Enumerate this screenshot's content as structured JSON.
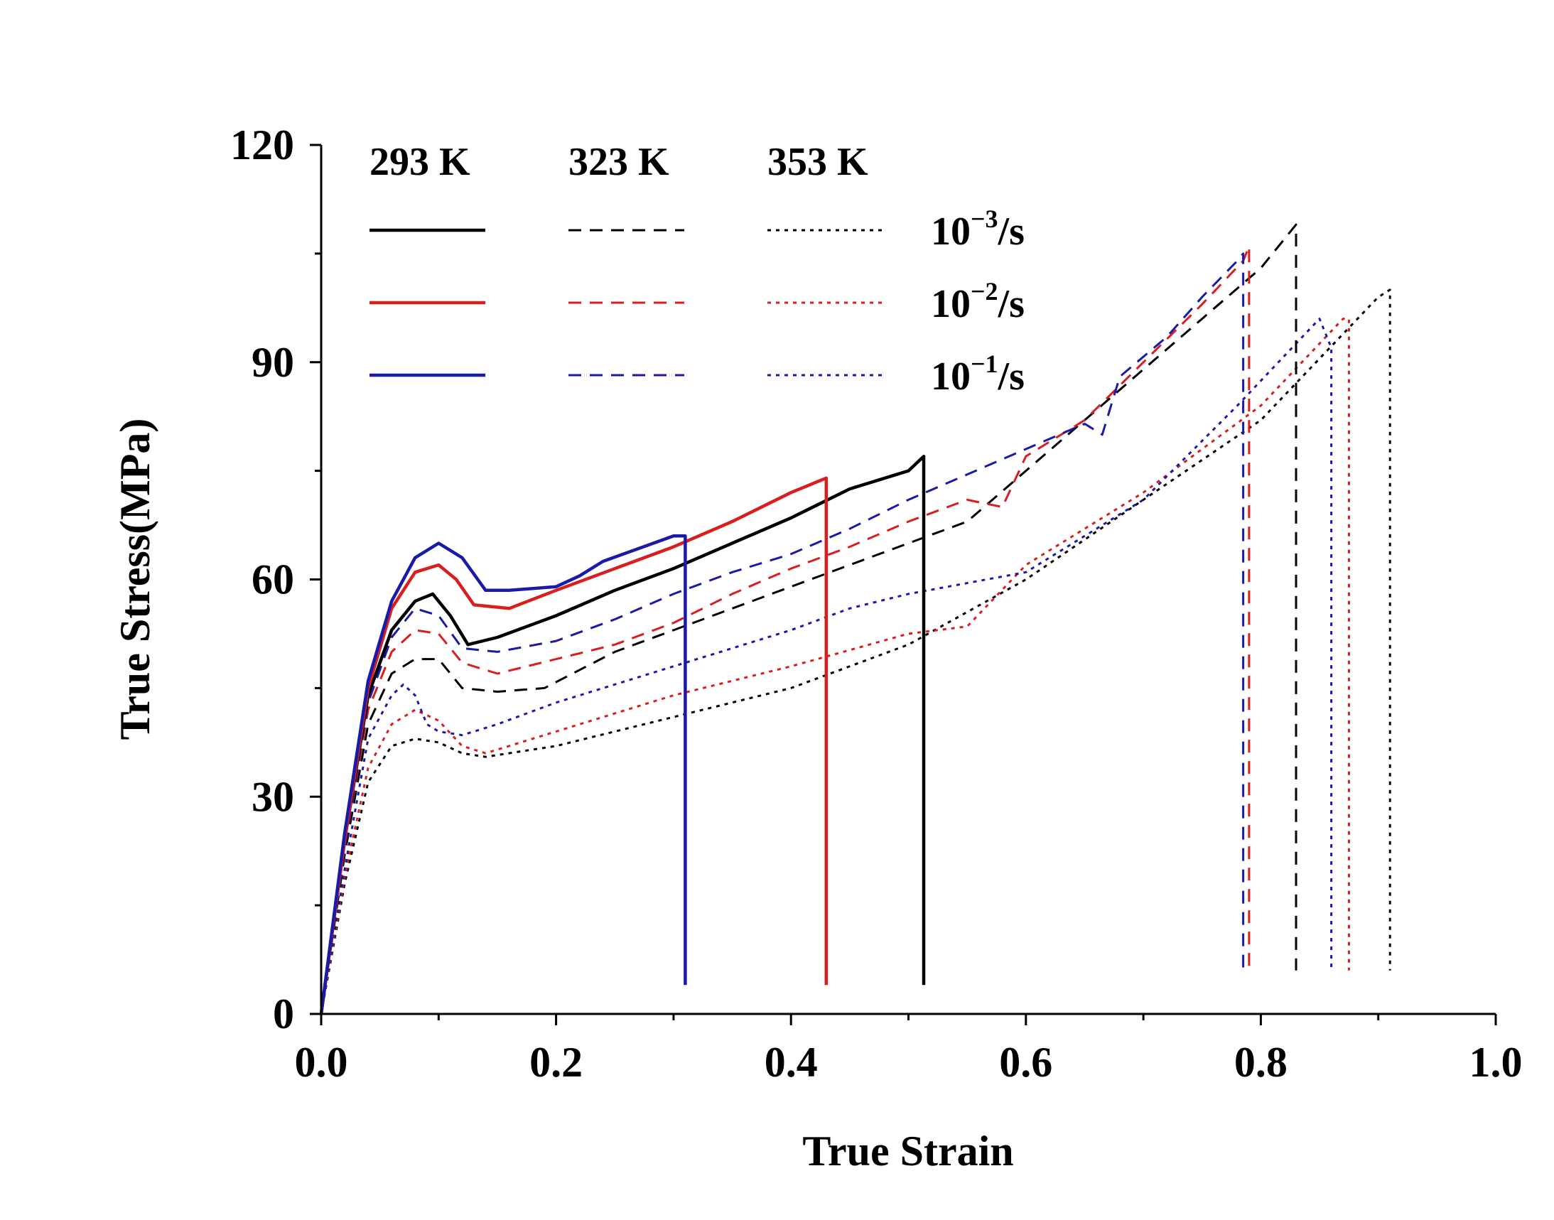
{
  "chart_data": {
    "type": "line",
    "title": "",
    "xlabel": "True Strain",
    "ylabel": "True Stress(MPa)",
    "xlim": [
      0,
      1.0
    ],
    "ylim": [
      0,
      120
    ],
    "xticks": [
      0.0,
      0.2,
      0.4,
      0.6,
      0.8,
      1.0
    ],
    "xtick_labels": [
      "0.0",
      "0.2",
      "0.4",
      "0.6",
      "0.8",
      "1.0"
    ],
    "yticks": [
      0,
      30,
      60,
      90,
      120
    ],
    "ytick_labels": [
      "0",
      "30",
      "60",
      "90",
      "120"
    ],
    "legend": {
      "placement": "top-left",
      "temperatures": [
        "293 K",
        "323 K",
        "353 K"
      ],
      "rates": [
        {
          "base": "10",
          "exp": "−3",
          "unit": "/s"
        },
        {
          "base": "10",
          "exp": "−2",
          "unit": "/s"
        },
        {
          "base": "10",
          "exp": "−1",
          "unit": "/s"
        }
      ]
    },
    "colors": {
      "rate_1e-3": "#000000",
      "rate_1e-2": "#d81e1e",
      "rate_1e-1": "#1a1aa8"
    },
    "line_styles": {
      "293 K": "solid",
      "323 K": "dashed",
      "353 K": "dotted"
    },
    "series": [
      {
        "name": "293 K, 10^-3/s",
        "temperature": "293 K",
        "rate": "10^-3/s",
        "x": [
          0,
          0.02,
          0.04,
          0.06,
          0.08,
          0.095,
          0.11,
          0.125,
          0.15,
          0.2,
          0.25,
          0.3,
          0.35,
          0.4,
          0.45,
          0.49,
          0.5,
          0.513,
          0.513
        ],
        "y": [
          0,
          24,
          44,
          53,
          57,
          58,
          55,
          51,
          52,
          55,
          58.5,
          61.5,
          65,
          68.5,
          72.5,
          74.5,
          75,
          77,
          4
        ]
      },
      {
        "name": "293 K, 10^-2/s",
        "temperature": "293 K",
        "rate": "10^-2/s",
        "x": [
          0,
          0.02,
          0.04,
          0.06,
          0.08,
          0.1,
          0.115,
          0.13,
          0.16,
          0.2,
          0.25,
          0.3,
          0.35,
          0.4,
          0.43,
          0.43
        ],
        "y": [
          0,
          24,
          45,
          56,
          61,
          62,
          60,
          56.5,
          56,
          58.5,
          61.5,
          64.5,
          68,
          72,
          74,
          4
        ]
      },
      {
        "name": "293 K, 10^-1/s",
        "temperature": "293 K",
        "rate": "10^-1/s",
        "x": [
          0,
          0.02,
          0.04,
          0.06,
          0.08,
          0.1,
          0.12,
          0.14,
          0.16,
          0.2,
          0.22,
          0.24,
          0.3,
          0.31,
          0.31
        ],
        "y": [
          0,
          25,
          46,
          57,
          63,
          65,
          63,
          58.5,
          58.5,
          59,
          60.5,
          62.5,
          66,
          66,
          4
        ]
      },
      {
        "name": "323 K, 10^-3/s",
        "temperature": "323 K",
        "rate": "10^-3/s",
        "x": [
          0,
          0.02,
          0.04,
          0.06,
          0.08,
          0.1,
          0.12,
          0.15,
          0.19,
          0.25,
          0.35,
          0.45,
          0.55,
          0.6,
          0.65,
          0.7,
          0.75,
          0.8,
          0.83,
          0.83
        ],
        "y": [
          0,
          22,
          40,
          47,
          49,
          49,
          45,
          44.5,
          45,
          50,
          56,
          62,
          68,
          75,
          82,
          89,
          96,
          103,
          109,
          6
        ]
      },
      {
        "name": "323 K, 10^-2/s",
        "temperature": "323 K",
        "rate": "10^-2/s",
        "x": [
          0,
          0.02,
          0.04,
          0.06,
          0.08,
          0.1,
          0.12,
          0.15,
          0.2,
          0.25,
          0.3,
          0.35,
          0.4,
          0.45,
          0.5,
          0.55,
          0.58,
          0.6,
          0.65,
          0.7,
          0.75,
          0.785,
          0.79,
          0.79
        ],
        "y": [
          0,
          23,
          42,
          50,
          53,
          52.5,
          48.5,
          47,
          49,
          51,
          54,
          58,
          61.5,
          64.5,
          68,
          71,
          70,
          77,
          82,
          90,
          98,
          104,
          106,
          6
        ]
      },
      {
        "name": "323 K, 10^-1/s",
        "temperature": "323 K",
        "rate": "10^-1/s",
        "x": [
          0,
          0.02,
          0.04,
          0.06,
          0.08,
          0.1,
          0.12,
          0.15,
          0.2,
          0.25,
          0.3,
          0.35,
          0.4,
          0.45,
          0.5,
          0.55,
          0.6,
          0.65,
          0.665,
          0.68,
          0.72,
          0.75,
          0.78,
          0.785,
          0.785
        ],
        "y": [
          0,
          23,
          43,
          52,
          56,
          55,
          50.5,
          50,
          51.5,
          54.5,
          58,
          61,
          63.5,
          67,
          71,
          74.5,
          78,
          81.5,
          80,
          88,
          93.5,
          99,
          104,
          105,
          6
        ]
      },
      {
        "name": "353 K, 10^-3/s",
        "temperature": "353 K",
        "rate": "10^-3/s",
        "x": [
          0,
          0.02,
          0.04,
          0.06,
          0.08,
          0.1,
          0.12,
          0.14,
          0.2,
          0.3,
          0.4,
          0.5,
          0.6,
          0.7,
          0.8,
          0.9,
          0.91,
          0.91
        ],
        "y": [
          0,
          18,
          32,
          37,
          38,
          37.5,
          36,
          35.5,
          37,
          41,
          45,
          51,
          60,
          71,
          82,
          99,
          100,
          6
        ]
      },
      {
        "name": "353 K, 10^-2/s",
        "temperature": "353 K",
        "rate": "10^-2/s",
        "x": [
          0,
          0.02,
          0.04,
          0.06,
          0.08,
          0.1,
          0.12,
          0.14,
          0.2,
          0.3,
          0.4,
          0.5,
          0.55,
          0.6,
          0.7,
          0.8,
          0.87,
          0.875,
          0.875
        ],
        "y": [
          0,
          19,
          34,
          40,
          42,
          40.5,
          37,
          36,
          39,
          44,
          48,
          52.5,
          53.5,
          62,
          72,
          84,
          96,
          96,
          6
        ]
      },
      {
        "name": "353 K, 10^-1/s",
        "temperature": "353 K",
        "rate": "10^-1/s",
        "x": [
          0,
          0.02,
          0.04,
          0.06,
          0.07,
          0.08,
          0.09,
          0.1,
          0.12,
          0.15,
          0.2,
          0.3,
          0.4,
          0.45,
          0.5,
          0.6,
          0.7,
          0.78,
          0.85,
          0.86,
          0.86
        ],
        "y": [
          0,
          20,
          38,
          44,
          45.5,
          44,
          40,
          39,
          38.5,
          40,
          43,
          48,
          53,
          56,
          58,
          61,
          71,
          84,
          96,
          92,
          6
        ]
      }
    ]
  }
}
